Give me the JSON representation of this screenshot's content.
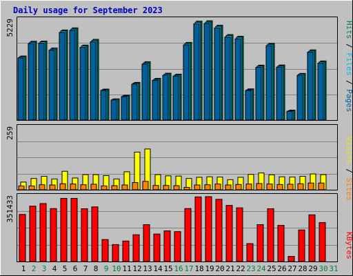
{
  "title": "Daily usage for September 2023",
  "colors": {
    "background": "#c0c0c0",
    "title_text": "#0000c0",
    "pages": "#00609c",
    "files": "#00b8f8",
    "hits": "#008060",
    "sites": "#ff8000",
    "visits": "#ffff00",
    "kbytes": "#ff0000",
    "weekend_day_label": "#008040",
    "weekday_label": "#000000"
  },
  "panels": {
    "top": {
      "ymax_label": "5229",
      "labels": {
        "pages": "Pages",
        "files": "Files",
        "hits": "Hits",
        "sep": "/"
      }
    },
    "middle": {
      "ymax_label": "259",
      "labels": {
        "sites": "Sites",
        "visits": "Visits",
        "sep": "/"
      }
    },
    "bottom": {
      "ymax_label": "351433",
      "labels": {
        "kbytes": "KBytes"
      }
    }
  },
  "chart_data": {
    "type": "bar",
    "title": "Daily usage for September 2023",
    "categories": [
      "1",
      "2",
      "3",
      "4",
      "5",
      "6",
      "7",
      "8",
      "9",
      "10",
      "11",
      "12",
      "13",
      "14",
      "15",
      "16",
      "17",
      "18",
      "19",
      "20",
      "21",
      "22",
      "23",
      "24",
      "25",
      "26",
      "27",
      "28",
      "29",
      "30",
      "31"
    ],
    "weekend_days": [
      "2",
      "3",
      "9",
      "10",
      "16",
      "17",
      "23",
      "24",
      "30",
      "31"
    ],
    "ylim": {
      "hits_files_pages": [
        0,
        5229
      ],
      "visits_sites": [
        0,
        259
      ],
      "kbytes": [
        0,
        351433
      ]
    },
    "series": [
      {
        "name": "Hits",
        "panel": "top",
        "values": [
          3350,
          4120,
          4130,
          3770,
          4710,
          4820,
          3920,
          4220,
          1620,
          1110,
          1300,
          1970,
          3050,
          2180,
          2450,
          2400,
          4060,
          5170,
          5190,
          4960,
          4470,
          4380,
          1630,
          2870,
          4010,
          2880,
          520,
          2440,
          3670,
          3090,
          0
        ]
      },
      {
        "name": "Files",
        "panel": "top",
        "values": [
          3310,
          4070,
          4090,
          3710,
          4660,
          4760,
          3870,
          4160,
          1590,
          1090,
          1270,
          1930,
          2990,
          2130,
          2400,
          2350,
          4000,
          5110,
          5120,
          4900,
          4420,
          4330,
          1590,
          2820,
          3960,
          2830,
          490,
          2400,
          3610,
          3040,
          0
        ]
      },
      {
        "name": "Pages",
        "panel": "top",
        "values": [
          3250,
          4000,
          4020,
          3650,
          4580,
          4690,
          3800,
          4090,
          1550,
          1050,
          1230,
          1880,
          2930,
          2080,
          2340,
          2300,
          3930,
          5030,
          5050,
          4820,
          4340,
          4250,
          1550,
          2760,
          3890,
          2770,
          460,
          2340,
          3550,
          2980,
          0
        ]
      },
      {
        "name": "Visits",
        "panel": "middle",
        "values": [
          32,
          47,
          56,
          45,
          77,
          49,
          63,
          63,
          59,
          45,
          75,
          157,
          170,
          63,
          58,
          57,
          47,
          52,
          54,
          53,
          42,
          52,
          64,
          70,
          62,
          54,
          53,
          56,
          66,
          63,
          0
        ]
      },
      {
        "name": "Sites",
        "panel": "middle",
        "values": [
          16,
          16,
          21,
          20,
          25,
          24,
          21,
          23,
          16,
          17,
          20,
          30,
          35,
          18,
          18,
          17,
          10,
          20,
          21,
          24,
          20,
          22,
          24,
          26,
          24,
          22,
          23,
          25,
          28,
          28,
          0
        ]
      },
      {
        "name": "KBytes",
        "panel": "bottom",
        "values": [
          255000,
          300000,
          314000,
          287000,
          342000,
          342000,
          286000,
          296000,
          119000,
          92000,
          111000,
          145000,
          200000,
          149000,
          166000,
          162000,
          287000,
          350000,
          351433,
          337000,
          304000,
          291000,
          97000,
          200000,
          286000,
          196000,
          28000,
          171000,
          253000,
          211000,
          0
        ]
      }
    ]
  }
}
